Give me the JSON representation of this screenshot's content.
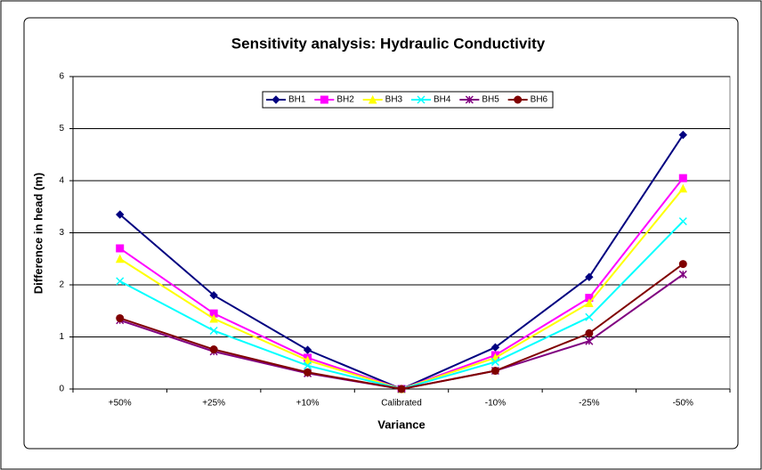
{
  "chart_data": {
    "type": "line",
    "title": "Sensitivity analysis: Hydraulic Conductivity",
    "xlabel": "Variance",
    "ylabel": "Difference in head (m)",
    "categories": [
      "+50%",
      "+25%",
      "+10%",
      "Calibrated",
      "-10%",
      "-25%",
      "-50%"
    ],
    "series": [
      {
        "name": "BH1",
        "color": "#000080",
        "marker": "diamond",
        "values": [
          3.35,
          1.8,
          0.75,
          0,
          0.8,
          2.15,
          4.88
        ]
      },
      {
        "name": "BH2",
        "color": "#ff00ff",
        "marker": "square",
        "values": [
          2.7,
          1.45,
          0.6,
          0,
          0.65,
          1.75,
          4.05
        ]
      },
      {
        "name": "BH3",
        "color": "#ffff00",
        "marker": "triangle",
        "values": [
          2.5,
          1.35,
          0.55,
          0,
          0.6,
          1.65,
          3.85
        ]
      },
      {
        "name": "BH4",
        "color": "#00ffff",
        "marker": "x",
        "values": [
          2.07,
          1.12,
          0.45,
          0,
          0.52,
          1.38,
          3.22
        ]
      },
      {
        "name": "BH5",
        "color": "#800080",
        "marker": "star",
        "values": [
          1.32,
          0.72,
          0.3,
          0,
          0.35,
          0.92,
          2.2
        ]
      },
      {
        "name": "BH6",
        "color": "#800000",
        "marker": "circle",
        "values": [
          1.36,
          0.76,
          0.32,
          0,
          0.35,
          1.07,
          2.4
        ]
      }
    ],
    "ylim": [
      0,
      6
    ],
    "yticks": [
      0,
      1,
      2,
      3,
      4,
      5,
      6
    ],
    "grid": true,
    "legend": "top"
  }
}
